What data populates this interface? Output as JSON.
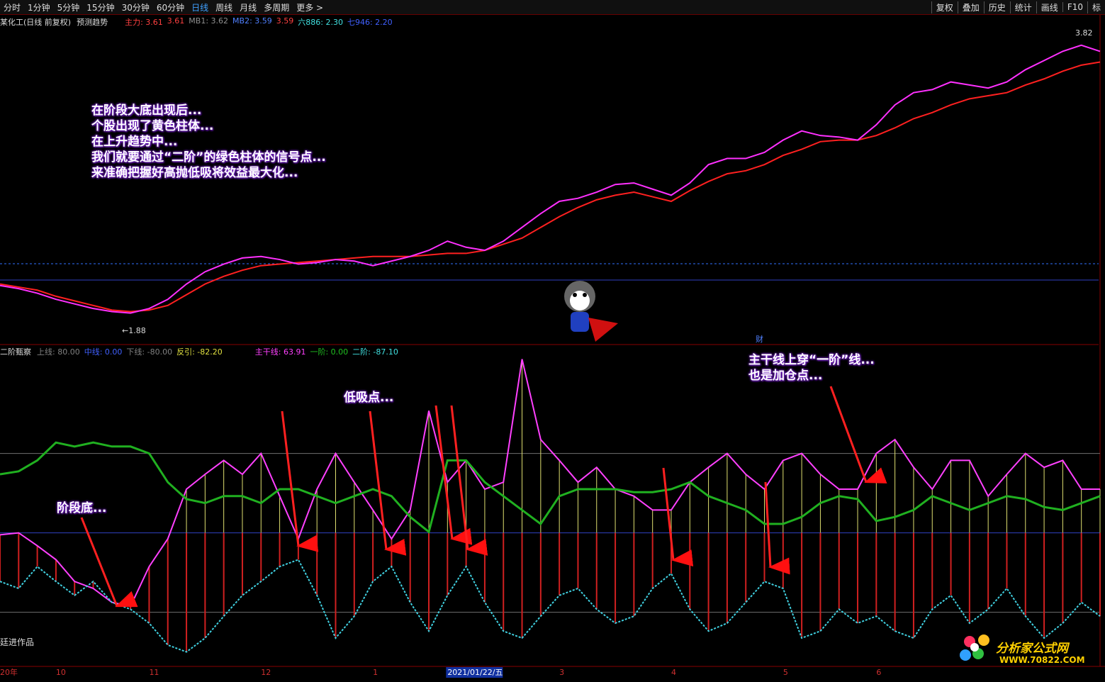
{
  "toolbar": {
    "periods": [
      "分时",
      "1分钟",
      "5分钟",
      "15分钟",
      "30分钟",
      "60分钟",
      "日线",
      "周线",
      "月线",
      "多周期",
      "更多 >"
    ],
    "tools": [
      "复权",
      "叠加",
      "历史",
      "统计",
      "画线",
      "F10",
      "标"
    ]
  },
  "info": {
    "stock": "某化工(日线 前复权)",
    "forecast": "预测趋势",
    "items": [
      {
        "text": "主力: 3.61",
        "color": "#ff4040"
      },
      {
        "text": "3.61",
        "color": "#ff4040"
      },
      {
        "text": "MB1: 3.62",
        "color": "#909090"
      },
      {
        "text": "MB2: 3.59",
        "color": "#5080ff"
      },
      {
        "text": "3.59",
        "color": "#ff4040"
      },
      {
        "text": "六886: 2.30",
        "color": "#40e0e0"
      },
      {
        "text": "七946: 2.20",
        "color": "#4060ff"
      }
    ],
    "high": "3.82",
    "low": "←1.88",
    "cai": "财"
  },
  "indicator_info": {
    "name": "二阶甄察",
    "items": [
      {
        "text": "上线: 80.00",
        "color": "#808080"
      },
      {
        "text": "中线: 0.00",
        "color": "#4060ff"
      },
      {
        "text": "下线: -80.00",
        "color": "#808080"
      },
      {
        "text": "反引: -82.20",
        "color": "#e0e040"
      },
      {
        "text": "主干线: 63.91",
        "color": "#ff40ff"
      },
      {
        "text": "一阶: 0.00",
        "color": "#20c020"
      },
      {
        "text": "二阶: -87.10",
        "color": "#40e0e0"
      }
    ]
  },
  "annotations": {
    "intro": [
      "在阶段大底出现后...",
      "个股出现了黄色柱体...",
      "在上升趋势中...",
      "我们就要通过“二阶”的绿色柱体的信号点...",
      "来准确把握好高抛低吸将效益最大化..."
    ],
    "bottom": "阶段底...",
    "buy": "低吸点...",
    "add": [
      "主干线上穿“一阶”线...",
      "也是加仓点..."
    ]
  },
  "footer": {
    "author": "廷进作品",
    "logo": "分析家公式网",
    "url": "WWW.70822.COM"
  },
  "chart_data": [
    {
      "type": "line",
      "ylim": [
        1.78,
        3.85
      ],
      "series": [
        {
          "color": "#ff2020",
          "values": [
            2.18,
            2.16,
            2.14,
            2.1,
            2.07,
            2.04,
            2.01,
            2.0,
            2.01,
            2.04,
            2.11,
            2.18,
            2.23,
            2.27,
            2.3,
            2.31,
            2.32,
            2.33,
            2.34,
            2.35,
            2.36,
            2.36,
            2.36,
            2.37,
            2.38,
            2.38,
            2.4,
            2.44,
            2.48,
            2.55,
            2.62,
            2.68,
            2.73,
            2.76,
            2.78,
            2.75,
            2.72,
            2.79,
            2.85,
            2.9,
            2.92,
            2.96,
            3.02,
            3.06,
            3.11,
            3.12,
            3.12,
            3.15,
            3.2,
            3.26,
            3.3,
            3.35,
            3.39,
            3.41,
            3.43,
            3.48,
            3.52,
            3.57,
            3.61,
            3.63
          ]
        },
        {
          "color": "#ff30ff",
          "values": [
            2.17,
            2.15,
            2.12,
            2.08,
            2.05,
            2.02,
            2.0,
            1.99,
            2.02,
            2.08,
            2.18,
            2.26,
            2.31,
            2.35,
            2.36,
            2.34,
            2.31,
            2.32,
            2.34,
            2.33,
            2.3,
            2.33,
            2.36,
            2.4,
            2.46,
            2.42,
            2.4,
            2.46,
            2.55,
            2.64,
            2.72,
            2.74,
            2.78,
            2.83,
            2.84,
            2.8,
            2.76,
            2.84,
            2.96,
            3.0,
            3.0,
            3.04,
            3.12,
            3.18,
            3.15,
            3.14,
            3.12,
            3.22,
            3.35,
            3.43,
            3.45,
            3.5,
            3.48,
            3.46,
            3.5,
            3.58,
            3.64,
            3.7,
            3.74,
            3.7
          ]
        }
      ]
    },
    {
      "type": "line",
      "ylim": [
        -131,
        189
      ],
      "levels": [
        80,
        0,
        -80
      ],
      "categories": [
        "20年",
        null,
        null,
        "10",
        null,
        null,
        null,
        null,
        "11",
        null,
        null,
        null,
        null,
        null,
        "12",
        null,
        null,
        null,
        null,
        null,
        "1",
        null,
        null,
        null,
        "2021/01/22/五",
        null,
        null,
        null,
        null,
        null,
        "3",
        null,
        null,
        null,
        null,
        null,
        "4",
        null,
        null,
        null,
        null,
        null,
        "5",
        null,
        null,
        null,
        null,
        "6",
        null,
        null,
        null,
        null,
        null,
        null,
        null,
        null,
        null,
        null,
        null,
        null
      ],
      "series": [
        {
          "color": "#ff40ff",
          "values": [
            -2,
            0,
            -13,
            -27,
            -49,
            -56,
            -70,
            -74,
            -34,
            -6,
            44,
            59,
            73,
            59,
            80,
            37,
            -6,
            44,
            80,
            51,
            23,
            -6,
            23,
            123,
            51,
            73,
            44,
            51,
            175,
            94,
            73,
            51,
            66,
            44,
            37,
            23,
            23,
            51,
            66,
            80,
            59,
            44,
            73,
            80,
            59,
            44,
            44,
            80,
            94,
            66,
            44,
            73,
            73,
            37,
            59,
            80,
            66,
            73,
            44,
            44
          ]
        },
        {
          "color": "#20b020",
          "values": [
            59,
            62,
            73,
            91,
            87,
            91,
            87,
            87,
            80,
            51,
            34,
            30,
            37,
            37,
            30,
            44,
            44,
            37,
            30,
            37,
            44,
            37,
            16,
            1,
            73,
            73,
            51,
            37,
            23,
            9,
            37,
            44,
            44,
            44,
            41,
            41,
            44,
            51,
            37,
            30,
            23,
            9,
            9,
            16,
            30,
            37,
            34,
            12,
            16,
            23,
            37,
            30,
            23,
            30,
            37,
            34,
            26,
            23,
            30,
            37
          ]
        },
        {
          "color": "#40d0e0",
          "values": [
            -49,
            -56,
            -34,
            -49,
            -63,
            -49,
            -70,
            -77,
            -91,
            -113,
            -120,
            -106,
            -84,
            -63,
            -49,
            -34,
            -27,
            -63,
            -106,
            -84,
            -49,
            -34,
            -70,
            -99,
            -63,
            -34,
            -70,
            -99,
            -106,
            -84,
            -63,
            -56,
            -77,
            -91,
            -84,
            -56,
            -41,
            -77,
            -99,
            -91,
            -70,
            -49,
            -56,
            -106,
            -99,
            -77,
            -91,
            -84,
            -99,
            -106,
            -77,
            -63,
            -91,
            -77,
            -56,
            -84,
            -106,
            -91,
            -70,
            -84
          ]
        }
      ]
    }
  ]
}
